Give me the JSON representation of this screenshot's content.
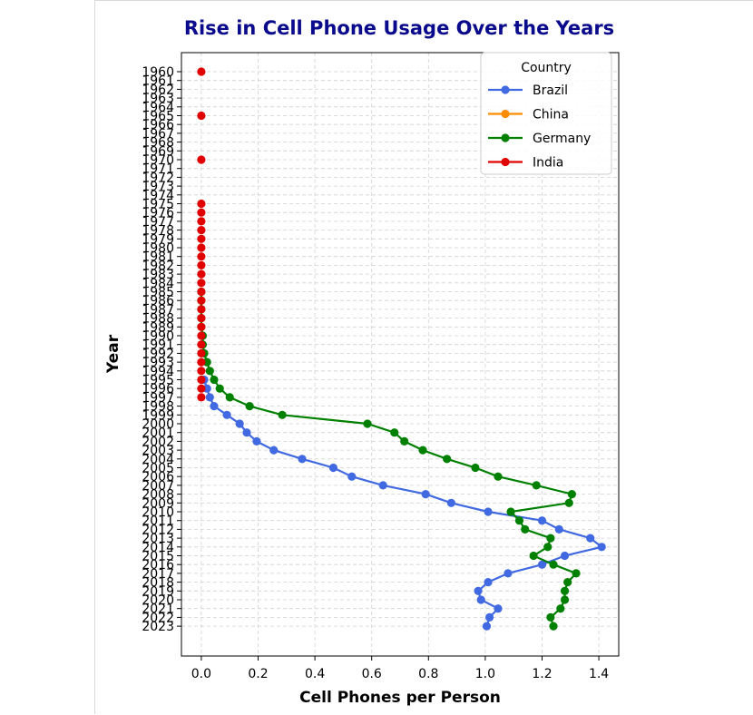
{
  "chart_data": {
    "type": "line",
    "title": "Rise in Cell Phone Usage Over the Years",
    "xlabel": "Cell Phones per Person",
    "ylabel": "Year",
    "xlim": [
      -0.07,
      1.47
    ],
    "x_ticks": [
      0.0,
      0.2,
      0.4,
      0.6,
      0.8,
      1.0,
      1.2,
      1.4
    ],
    "x_tick_labels": [
      "0.0",
      "0.2",
      "0.4",
      "0.6",
      "0.8",
      "1.0",
      "1.2",
      "1.4"
    ],
    "y_categories": [
      "1960",
      "1961",
      "1962",
      "1963",
      "1964",
      "1965",
      "1966",
      "1967",
      "1968",
      "1969",
      "1970",
      "1971",
      "1972",
      "1973",
      "1974",
      "1975",
      "1976",
      "1977",
      "1978",
      "1979",
      "1980",
      "1981",
      "1982",
      "1983",
      "1984",
      "1985",
      "1986",
      "1987",
      "1988",
      "1989",
      "1990",
      "1991",
      "1992",
      "1993",
      "1994",
      "1995",
      "1996",
      "1997",
      "1998",
      "1999",
      "2000",
      "2001",
      "2002",
      "2003",
      "2004",
      "2005",
      "2006",
      "2007",
      "2008",
      "2009",
      "2010",
      "2011",
      "2012",
      "2013",
      "2014",
      "2015",
      "2016",
      "2017",
      "2018",
      "2019",
      "2020",
      "2021",
      "2022",
      "2023"
    ],
    "y_axis_inverted": true,
    "grid": true,
    "legend": {
      "title": "Country",
      "placement": "top-right"
    },
    "series": [
      {
        "name": "Brazil",
        "color": "#4169e1",
        "points": [
          [
            "1995",
            0.01
          ],
          [
            "1996",
            0.02
          ],
          [
            "1997",
            0.03
          ],
          [
            "1998",
            0.045
          ],
          [
            "1999",
            0.09
          ],
          [
            "2000",
            0.135
          ],
          [
            "2001",
            0.16
          ],
          [
            "2002",
            0.195
          ],
          [
            "2003",
            0.255
          ],
          [
            "2004",
            0.355
          ],
          [
            "2005",
            0.465
          ],
          [
            "2006",
            0.53
          ],
          [
            "2007",
            0.64
          ],
          [
            "2008",
            0.79
          ],
          [
            "2009",
            0.88
          ],
          [
            "2010",
            1.01
          ],
          [
            "2011",
            1.2
          ],
          [
            "2012",
            1.26
          ],
          [
            "2013",
            1.37
          ],
          [
            "2014",
            1.41
          ],
          [
            "2015",
            1.28
          ],
          [
            "2016",
            1.2
          ],
          [
            "2017",
            1.08
          ],
          [
            "2018",
            1.01
          ],
          [
            "2019",
            0.975
          ],
          [
            "2020",
            0.985
          ],
          [
            "2021",
            1.045
          ],
          [
            "2022",
            1.015
          ],
          [
            "2023",
            1.005
          ]
        ]
      },
      {
        "name": "China",
        "color": "#ff8c00",
        "points": []
      },
      {
        "name": "Germany",
        "color": "#008000",
        "points": [
          [
            "1985",
            0.0
          ],
          [
            "1986",
            0.0
          ],
          [
            "1987",
            0.0
          ],
          [
            "1988",
            0.0
          ],
          [
            "1989",
            0.0
          ],
          [
            "1990",
            0.005
          ],
          [
            "1991",
            0.005
          ],
          [
            "1992",
            0.01
          ],
          [
            "1993",
            0.02
          ],
          [
            "1994",
            0.03
          ],
          [
            "1995",
            0.045
          ],
          [
            "1996",
            0.065
          ],
          [
            "1997",
            0.1
          ],
          [
            "1998",
            0.17
          ],
          [
            "1999",
            0.285
          ],
          [
            "2000",
            0.585
          ],
          [
            "2001",
            0.68
          ],
          [
            "2002",
            0.715
          ],
          [
            "2003",
            0.78
          ],
          [
            "2004",
            0.865
          ],
          [
            "2005",
            0.965
          ],
          [
            "2006",
            1.045
          ],
          [
            "2007",
            1.18
          ],
          [
            "2008",
            1.305
          ],
          [
            "2009",
            1.295
          ],
          [
            "2010",
            1.09
          ],
          [
            "2011",
            1.12
          ],
          [
            "2012",
            1.14
          ],
          [
            "2013",
            1.23
          ],
          [
            "2014",
            1.22
          ],
          [
            "2015",
            1.17
          ],
          [
            "2016",
            1.24
          ],
          [
            "2017",
            1.32
          ],
          [
            "2018",
            1.29
          ],
          [
            "2019",
            1.28
          ],
          [
            "2020",
            1.28
          ],
          [
            "2021",
            1.265
          ],
          [
            "2022",
            1.23
          ],
          [
            "2023",
            1.24
          ]
        ]
      },
      {
        "name": "India",
        "color": "#e00000",
        "markers_only": true,
        "points": [
          [
            "1960",
            0.0
          ],
          [
            "1965",
            0.0
          ],
          [
            "1970",
            0.0
          ],
          [
            "1975",
            0.0
          ],
          [
            "1976",
            0.0
          ],
          [
            "1977",
            0.0
          ],
          [
            "1978",
            0.0
          ],
          [
            "1979",
            0.0
          ],
          [
            "1980",
            0.0
          ],
          [
            "1981",
            0.0
          ],
          [
            "1982",
            0.0
          ],
          [
            "1983",
            0.0
          ],
          [
            "1984",
            0.0
          ],
          [
            "1985",
            0.0
          ],
          [
            "1986",
            0.0
          ],
          [
            "1987",
            0.0
          ],
          [
            "1988",
            0.0
          ],
          [
            "1989",
            0.0
          ],
          [
            "1990",
            0.0
          ],
          [
            "1991",
            0.0
          ],
          [
            "1992",
            0.0
          ],
          [
            "1993",
            0.0
          ],
          [
            "1994",
            0.0
          ],
          [
            "1995",
            0.0
          ],
          [
            "1996",
            0.0
          ],
          [
            "1997",
            0.0
          ]
        ]
      }
    ]
  }
}
